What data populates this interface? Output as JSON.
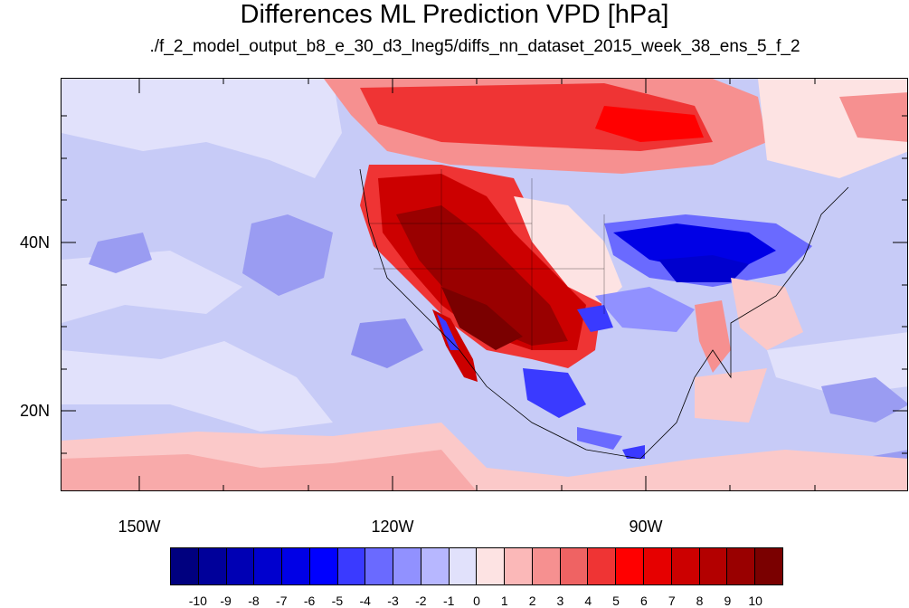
{
  "title": "Differences ML Prediction VPD [hPa]",
  "subtitle": "./f_2_model_output_b8_e_30_d3_lneg5/diffs_nn_dataset_2015_week_38_ens_5_f_2",
  "lat_labels": [
    "40N",
    "20N"
  ],
  "lon_labels": [
    "150W",
    "120W",
    "90W"
  ],
  "colorbar": {
    "labels": [
      "-10",
      "-9",
      "-8",
      "-7",
      "-6",
      "-5",
      "-4",
      "-3",
      "-2",
      "-1",
      "0",
      "1",
      "2",
      "3",
      "4",
      "5",
      "6",
      "7",
      "8",
      "9",
      "10"
    ],
    "colors": [
      "#00007f",
      "#00009a",
      "#0000b4",
      "#0000ce",
      "#0000e6",
      "#0000ff",
      "#3a3aff",
      "#6a6aff",
      "#9191ff",
      "#b7b7ff",
      "#e1e1fb",
      "#fde3e3",
      "#fbb8b8",
      "#f69090",
      "#ef6363",
      "#ef3434",
      "#ff0000",
      "#e60000",
      "#cc0000",
      "#b30000",
      "#990000",
      "#7a0000"
    ]
  },
  "map_regions_legend": {
    "background": "#c9ccf8",
    "light_blue": "#b7b7ff",
    "pale": "#e1e1fb",
    "pink": "#fde3e3",
    "red": "#ef3434",
    "dark_red": "#990000",
    "blue": "#3a3aff",
    "deep_blue": "#0000e6"
  }
}
